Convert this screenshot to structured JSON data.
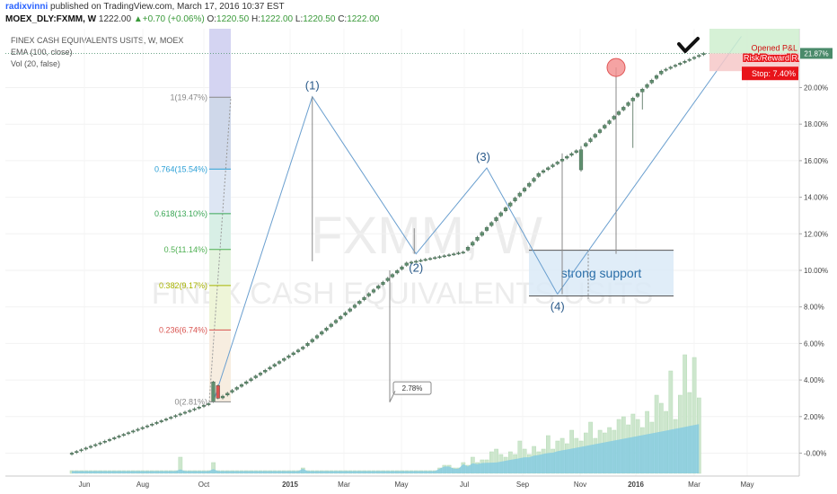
{
  "header": {
    "author": "radixvinni",
    "published": "published on TradingView.com, March 17, 2016 10:37 EST",
    "symbol": "MOEX_DLY:FXMM, W",
    "price": "1222.00",
    "change": "+0.70 (+0.06%)",
    "open_label": "O:",
    "open": "1220.50",
    "high_label": "H:",
    "high": "1222.00",
    "low_label": "L:",
    "low": "1220.50",
    "close_label": "C:",
    "close": "1222.00"
  },
  "indicators": {
    "title": "FINEX CASH EQUIVALENTS USITS, W, MOEX",
    "ema": "EMA (100, close)",
    "vol": "Vol (20, false)"
  },
  "watermark": {
    "symbol": "FXMM, W",
    "name": "FINEX CASH EQUIVALENTS USITS"
  },
  "colors": {
    "candle": "#5f8f6f",
    "volume_bar": "#cde6cd",
    "volume_area": "#7ec8e3",
    "trendline": "#6a9fcf",
    "support_box": "#dbeaf7",
    "stop_badge": "#e8141a",
    "price_badge": "#4a8a6a",
    "target_circle": "#f28c8c"
  },
  "chart_data": {
    "type": "candlestick",
    "y_axis": {
      "unit": "%",
      "range": [
        -1.2,
        22.6
      ],
      "ticks": [
        "-0.00%",
        "2.00%",
        "4.00%",
        "6.00%",
        "8.00%",
        "10.00%",
        "12.00%",
        "14.00%",
        "16.00%",
        "18.00%",
        "20.00%"
      ]
    },
    "x_axis": {
      "ticks": [
        "Jun",
        "Aug",
        "Oct",
        "2015",
        "Mar",
        "May",
        "Jul",
        "Sep",
        "Nov",
        "2016",
        "Mar",
        "May"
      ]
    },
    "price_path": [
      {
        "x": 0,
        "y": 0.0
      },
      {
        "x": 30,
        "y": 2.8
      },
      {
        "x": 49,
        "y": 5.8
      },
      {
        "x": 71,
        "y": 10.4
      },
      {
        "x": 83,
        "y": 11.0
      },
      {
        "x": 99,
        "y": 15.3
      },
      {
        "x": 108,
        "y": 16.7
      },
      {
        "x": 125,
        "y": 20.9
      },
      {
        "x": 134,
        "y": 21.87
      }
    ],
    "current_value_label": "21.87%",
    "fibonacci": [
      {
        "label": "1(19.47%)",
        "value": 19.47,
        "color": "#888888"
      },
      {
        "label": "0.764(15.54%)",
        "value": 15.54,
        "color": "#2a9fd6"
      },
      {
        "label": "0.618(13.10%)",
        "value": 13.1,
        "color": "#3aa655"
      },
      {
        "label": "0.5(11.14%)",
        "value": 11.14,
        "color": "#4caf50"
      },
      {
        "label": "0.382(9.17%)",
        "value": 9.17,
        "color": "#a8b400"
      },
      {
        "label": "0.236(6.74%)",
        "value": 6.74,
        "color": "#d9534f"
      },
      {
        "label": "0(2.81%)",
        "value": 2.81,
        "color": "#888888"
      }
    ],
    "waves": [
      {
        "label": "(1)",
        "x": 51,
        "y": 19.5
      },
      {
        "label": "(2)",
        "x": 73,
        "y": 10.9
      },
      {
        "label": "(3)",
        "x": 88,
        "y": 15.6
      },
      {
        "label": "(4)",
        "x": 103,
        "y": 8.7
      }
    ],
    "annotations": {
      "measure": "2.78%",
      "support": "strong support",
      "support_range": [
        8.6,
        11.1
      ]
    },
    "position": {
      "opened": "Opened P&L",
      "risk_reward": "Risk/Reward R",
      "stop": "Stop: 7.40%"
    },
    "volume": [
      0.1,
      0.1,
      0.1,
      0.1,
      0.1,
      0.1,
      0.1,
      0.1,
      0.1,
      0.1,
      0.1,
      0.1,
      0.1,
      0.1,
      0.1,
      0.1,
      0.1,
      0.1,
      0.1,
      0.1,
      0.1,
      0.1,
      0.1,
      0.6,
      0.1,
      0.1,
      0.1,
      0.1,
      0.1,
      0.1,
      0.4,
      0.1,
      0.1,
      0.1,
      0.1,
      0.1,
      0.1,
      0.1,
      0.1,
      0.1,
      0.1,
      0.1,
      0.1,
      0.1,
      0.1,
      0.1,
      0.1,
      0.1,
      0.1,
      0.2,
      0.1,
      0.1,
      0.1,
      0.1,
      0.1,
      0.1,
      0.1,
      0.1,
      0.1,
      0.1,
      0.1,
      0.1,
      0.1,
      0.1,
      0.1,
      0.1,
      0.1,
      0.1,
      0.1,
      0.1,
      0.1,
      0.1,
      0.1,
      0.1,
      0.1,
      0.1,
      0.1,
      0.1,
      0.2,
      0.3,
      0.3,
      0.2,
      0.2,
      0.4,
      0.3,
      0.6,
      0.4,
      0.5,
      0.5,
      0.8,
      0.9,
      0.7,
      0.6,
      0.8,
      0.7,
      1.2,
      0.9,
      0.7,
      1.0,
      0.8,
      0.9,
      1.4,
      0.9,
      1.2,
      1.3,
      1.1,
      1.6,
      1.3,
      1.2,
      1.5,
      1.9,
      1.3,
      1.6,
      1.5,
      1.7,
      1.6,
      2.0,
      2.1,
      1.8,
      2.2,
      2.0,
      1.7,
      2.3,
      1.9,
      2.9,
      2.6,
      2.3,
      3.8,
      2.0,
      2.9,
      4.4,
      3.0,
      4.3,
      2.8
    ]
  }
}
